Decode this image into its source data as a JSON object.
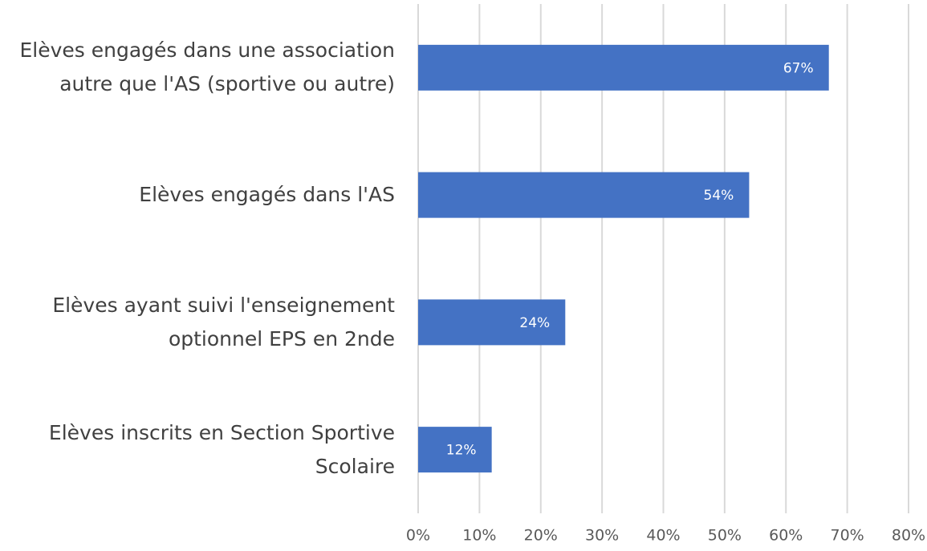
{
  "chart_data": {
    "type": "barh",
    "categories": [
      "Elèves engagés dans une association autre que l'AS (sportive ou autre)",
      "Elèves engagés dans l'AS",
      "Elèves ayant suivi l'enseignement optionnel EPS en 2nde",
      "Elèves inscrits en Section Sportive Scolaire"
    ],
    "values": [
      67,
      54,
      24,
      12
    ],
    "value_labels": [
      "67%",
      "54%",
      "24%",
      "12%"
    ],
    "color": "#4472c4",
    "xlim": [
      0,
      80
    ],
    "xticks": [
      {
        "value": 0,
        "label": "0%"
      },
      {
        "value": 10,
        "label": "10%"
      },
      {
        "value": 20,
        "label": "20%"
      },
      {
        "value": 30,
        "label": "30%"
      },
      {
        "value": 40,
        "label": "40%"
      },
      {
        "value": 50,
        "label": "50%"
      },
      {
        "value": 60,
        "label": "60%"
      },
      {
        "value": 70,
        "label": "70%"
      },
      {
        "value": 80,
        "label": "80%"
      }
    ],
    "grid": true
  }
}
